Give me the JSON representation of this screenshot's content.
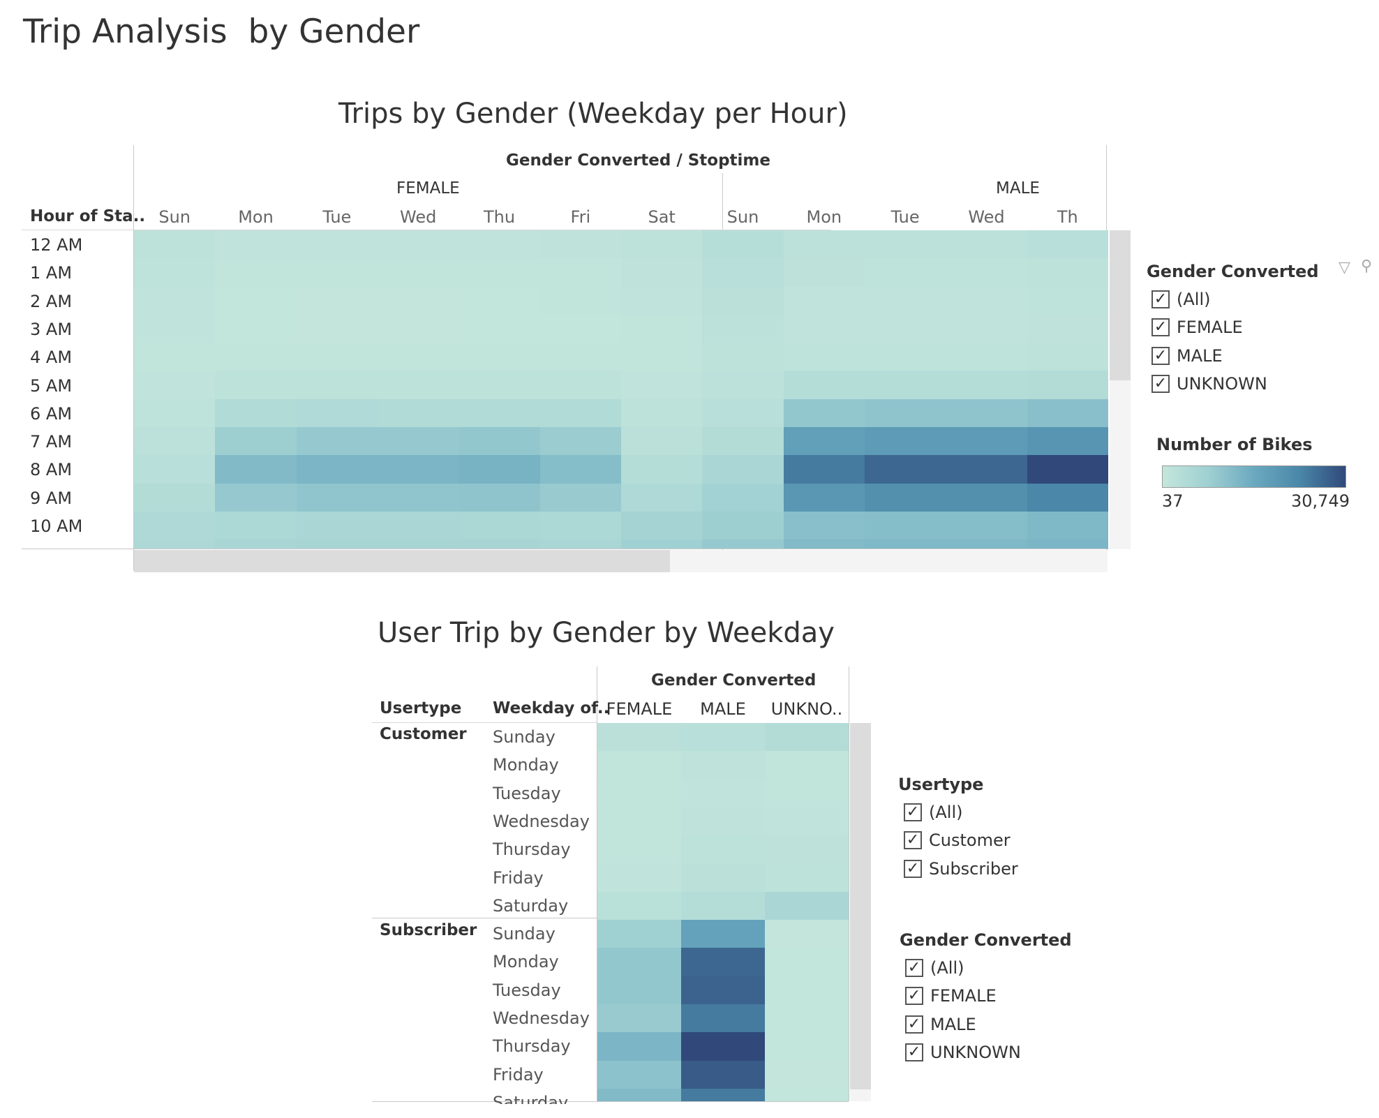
{
  "dashboard": {
    "title": "Trip Analysis  by Gender"
  },
  "heatmap1": {
    "title": "Trips by Gender (Weekday per Hour)",
    "column_header": "Gender Converted / Stoptime",
    "row_header": "Hour of Sta..",
    "genders": [
      "FEMALE",
      "MALE"
    ],
    "female_days": [
      "Sun",
      "Mon",
      "Tue",
      "Wed",
      "Thu",
      "Fri",
      "Sat"
    ],
    "male_days": [
      "Sun",
      "Mon",
      "Tue",
      "Wed",
      "Th"
    ],
    "hours": [
      "12 AM",
      "1 AM",
      "2 AM",
      "3 AM",
      "4 AM",
      "5 AM",
      "6 AM",
      "7 AM",
      "8 AM",
      "9 AM",
      "10 AM"
    ]
  },
  "heatmap2": {
    "title": "User Trip by Gender by Weekday",
    "column_header": "Gender Converted",
    "row_header_1": "Usertype",
    "row_header_2": "Weekday of..",
    "columns": [
      "FEMALE",
      "MALE",
      "UNKNO.."
    ],
    "groups": [
      "Customer",
      "Subscriber"
    ],
    "customer_days": [
      "Sunday",
      "Monday",
      "Tuesday",
      "Wednesday",
      "Thursday",
      "Friday",
      "Saturday"
    ],
    "subscriber_days": [
      "Sunday",
      "Monday",
      "Tuesday",
      "Wednesday",
      "Thursday",
      "Friday",
      "Saturday"
    ]
  },
  "filters": {
    "gender1": {
      "title": "Gender Converted",
      "items": [
        "(All)",
        "FEMALE",
        "MALE",
        "UNKNOWN"
      ]
    },
    "usertype": {
      "title": "Usertype",
      "items": [
        "(All)",
        "Customer",
        "Subscriber"
      ]
    },
    "gender2": {
      "title": "Gender Converted",
      "items": [
        "(All)",
        "FEMALE",
        "MALE",
        "UNKNOWN"
      ]
    }
  },
  "color_legend": {
    "title": "Number of Bikes",
    "min_label": "37",
    "max_label": "30,749",
    "min_value": 37,
    "max_value": 30749,
    "colors": [
      "#c4e6dc",
      "#9fd0d2",
      "#6ba9c0",
      "#4a87a8",
      "#30497a"
    ]
  },
  "check_mark": "✓",
  "chart_data": [
    {
      "type": "heatmap",
      "title": "Trips by Gender (Weekday per Hour)",
      "x_header": "Gender Converted / Stoptime",
      "y_header": "Hour of Sta..",
      "columns": [
        "FEMALE Sun",
        "FEMALE Mon",
        "FEMALE Tue",
        "FEMALE Wed",
        "FEMALE Thu",
        "FEMALE Fri",
        "FEMALE Sat",
        "MALE Sun",
        "MALE Mon",
        "MALE Tue",
        "MALE Wed",
        "MALE Th"
      ],
      "rows": [
        "12 AM",
        "1 AM",
        "2 AM",
        "3 AM",
        "4 AM",
        "5 AM",
        "6 AM",
        "7 AM",
        "8 AM",
        "9 AM",
        "10 AM"
      ],
      "values": [
        [
          1500,
          900,
          800,
          800,
          900,
          1000,
          1400,
          3000,
          1800,
          1800,
          1800,
          2500
        ],
        [
          1200,
          600,
          500,
          500,
          600,
          700,
          1100,
          2600,
          1300,
          1200,
          1200,
          1600
        ],
        [
          900,
          400,
          300,
          300,
          400,
          450,
          800,
          2000,
          900,
          800,
          800,
          1200
        ],
        [
          800,
          350,
          300,
          300,
          350,
          400,
          700,
          1800,
          800,
          800,
          800,
          1100
        ],
        [
          700,
          500,
          450,
          450,
          500,
          500,
          700,
          1500,
          1200,
          1200,
          1200,
          1500
        ],
        [
          800,
          1500,
          1500,
          1500,
          1500,
          1500,
          900,
          1800,
          3200,
          3300,
          3300,
          3600
        ],
        [
          1200,
          4000,
          4200,
          4000,
          4000,
          4000,
          1500,
          2600,
          9500,
          10000,
          10000,
          11000
        ],
        [
          1800,
          8000,
          9000,
          9000,
          9500,
          8500,
          2200,
          3500,
          17500,
          18500,
          18500,
          20000
        ],
        [
          2600,
          12000,
          13000,
          13000,
          13500,
          11500,
          3300,
          5500,
          24500,
          27000,
          27000,
          30749
        ],
        [
          3500,
          9000,
          9800,
          9800,
          10000,
          8800,
          4500,
          7000,
          19500,
          21000,
          21000,
          23000
        ],
        [
          4500,
          5000,
          5400,
          5400,
          5200,
          5000,
          6500,
          8000,
          11000,
          11500,
          11500,
          12500
        ]
      ],
      "color_range": [
        37,
        30749
      ]
    },
    {
      "type": "heatmap",
      "title": "User Trip by Gender by Weekday",
      "x_header": "Gender Converted",
      "columns": [
        "FEMALE",
        "MALE",
        "UNKNO.."
      ],
      "rows": [
        "Customer Sunday",
        "Customer Monday",
        "Customer Tuesday",
        "Customer Wednesday",
        "Customer Thursday",
        "Customer Friday",
        "Customer Saturday",
        "Subscriber Sunday",
        "Subscriber Monday",
        "Subscriber Tuesday",
        "Subscriber Wednesday",
        "Subscriber Thursday",
        "Subscriber Friday",
        "Subscriber Saturday"
      ],
      "values": [
        [
          2000,
          2600,
          3500
        ],
        [
          600,
          1100,
          700
        ],
        [
          500,
          900,
          600
        ],
        [
          600,
          1000,
          800
        ],
        [
          700,
          1600,
          1300
        ],
        [
          800,
          2000,
          1600
        ],
        [
          2300,
          3200,
          5500
        ],
        [
          7500,
          17000,
          300
        ],
        [
          9500,
          27000,
          200
        ],
        [
          9500,
          27500,
          200
        ],
        [
          8800,
          24500,
          200
        ],
        [
          13000,
          30749,
          200
        ],
        [
          10500,
          28500,
          300
        ],
        [
          12000,
          24500,
          400
        ]
      ],
      "color_range": [
        37,
        30749
      ]
    }
  ]
}
